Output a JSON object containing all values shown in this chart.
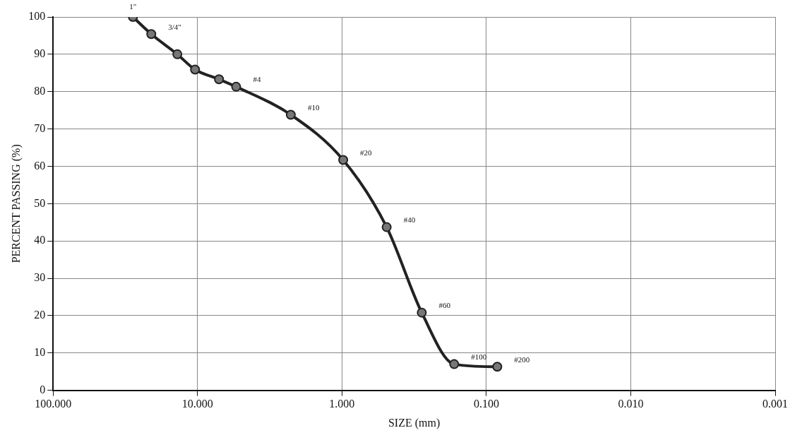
{
  "chart_data": {
    "type": "line",
    "xlabel": "SIZE (mm)",
    "ylabel": "PERCENT PASSING (%)",
    "x": [
      28,
      20.9,
      13.8,
      10.4,
      7.1,
      5.4,
      2.26,
      0.98,
      0.49,
      0.28,
      0.167,
      0.084
    ],
    "series": [
      {
        "color": "#222222",
        "values": [
          100,
          95.4,
          90,
          85.9,
          83.3,
          81.3,
          73.8,
          61.7,
          43.7,
          20.8,
          7,
          6.3
        ]
      }
    ],
    "log": "x",
    "xlim": [
      100,
      0.001
    ],
    "xticks": [
      {
        "value": 100,
        "label": "100.000"
      },
      {
        "value": 10,
        "label": "10.000"
      },
      {
        "value": 1,
        "label": "1.000"
      },
      {
        "value": 0.1,
        "label": "0.100"
      },
      {
        "value": 0.01,
        "label": "0.010"
      },
      {
        "value": 0.001,
        "label": "0.001"
      }
    ],
    "ylim": [
      0,
      100
    ],
    "yticks": [
      0,
      10,
      20,
      30,
      40,
      50,
      60,
      70,
      80,
      90,
      100
    ],
    "grid": true,
    "legend": false,
    "marker": "circle",
    "line_style": "solid",
    "annotations": [
      {
        "text": "1\"",
        "x": 28,
        "y": 100
      },
      {
        "text": "3/4\"",
        "x": 20.9,
        "y": 95.4
      },
      {
        "text": "#4",
        "x": 5.4,
        "y": 81.3
      },
      {
        "text": "#10",
        "x": 2.26,
        "y": 73.8
      },
      {
        "text": "#20",
        "x": 0.98,
        "y": 61.7
      },
      {
        "text": "#40",
        "x": 0.49,
        "y": 43.7
      },
      {
        "text": "#60",
        "x": 0.28,
        "y": 20.8
      },
      {
        "text": "#100",
        "x": 0.167,
        "y": 7
      },
      {
        "text": "#200",
        "x": 0.084,
        "y": 6.3
      }
    ]
  }
}
